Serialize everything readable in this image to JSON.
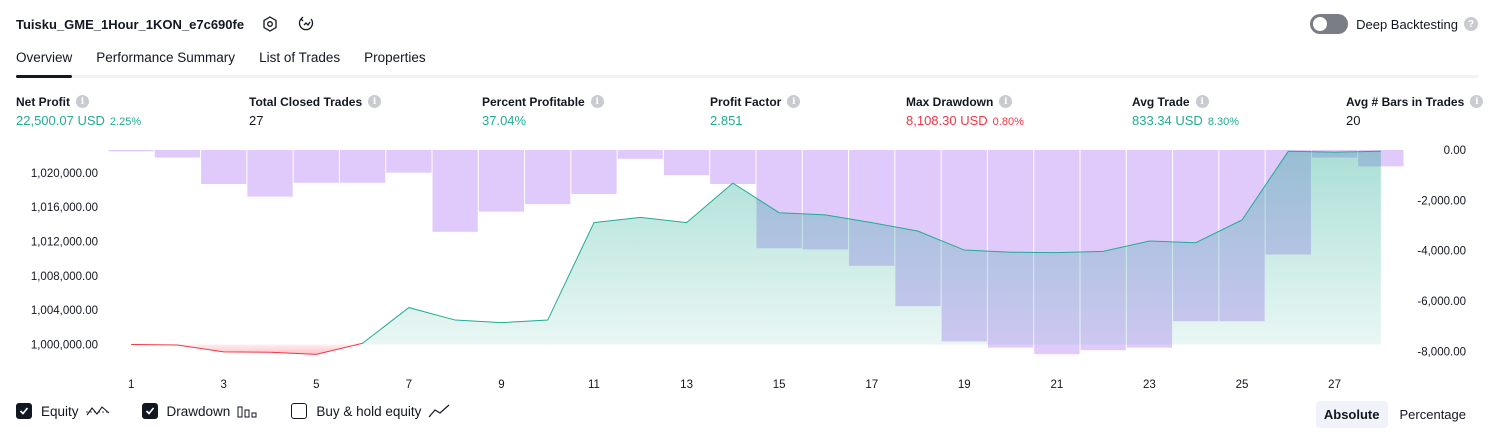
{
  "header": {
    "strategy_name": "Tuisku_GME_1Hour_1KON_e7c690fe",
    "deep_backtesting_label": "Deep Backtesting",
    "help_glyph": "?"
  },
  "tabs": [
    {
      "label": "Overview",
      "active": true
    },
    {
      "label": "Performance Summary",
      "active": false
    },
    {
      "label": "List of Trades",
      "active": false
    },
    {
      "label": "Properties",
      "active": false
    }
  ],
  "info_glyph": "i",
  "metrics": [
    {
      "label": "Net Profit",
      "value": "22,500.07 USD",
      "sub": "2.25%",
      "color": "green"
    },
    {
      "label": "Total Closed Trades",
      "value": "27",
      "sub": "",
      "color": "black"
    },
    {
      "label": "Percent Profitable",
      "value": "37.04%",
      "sub": "",
      "color": "green"
    },
    {
      "label": "Profit Factor",
      "value": "2.851",
      "sub": "",
      "color": "green"
    },
    {
      "label": "Max Drawdown",
      "value": "8,108.30 USD",
      "sub": "0.80%",
      "color": "red"
    },
    {
      "label": "Avg Trade",
      "value": "833.34 USD",
      "sub": "8.30%",
      "color": "green"
    },
    {
      "label": "Avg # Bars in Trades",
      "value": "20",
      "sub": "",
      "color": "black"
    }
  ],
  "legend": {
    "equity_label": "Equity",
    "drawdown_label": "Drawdown",
    "buy_hold_label": "Buy & hold equity",
    "equity_checked": true,
    "drawdown_checked": true,
    "buy_hold_checked": false
  },
  "mode": {
    "absolute_label": "Absolute",
    "percentage_label": "Percentage",
    "selected": "Absolute"
  },
  "chart_data": {
    "type": "area",
    "x": [
      1,
      2,
      3,
      4,
      5,
      6,
      7,
      8,
      9,
      10,
      11,
      12,
      13,
      14,
      15,
      16,
      17,
      18,
      19,
      20,
      21,
      22,
      23,
      24,
      25,
      26,
      27,
      28
    ],
    "x_tick_labels": [
      "1",
      "3",
      "5",
      "7",
      "9",
      "11",
      "13",
      "15",
      "17",
      "19",
      "21",
      "23",
      "25",
      "27"
    ],
    "series": [
      {
        "values": [
          1000000,
          999950,
          999150,
          999100,
          998850,
          1000150,
          1004300,
          1002850,
          1002550,
          1002850,
          1014200,
          1014800,
          1014200,
          1018800,
          1015350,
          1015100,
          1014200,
          1013200,
          1011000,
          1010750,
          1010700,
          1010850,
          1012050,
          1011850,
          1014500,
          1022500,
          1022400,
          1022500
        ]
      },
      {
        "values": [
          -50,
          -300,
          -1350,
          -1850,
          -1300,
          -1300,
          -900,
          -3250,
          -2450,
          -2150,
          -1750,
          -350,
          -1000,
          -1350,
          -3900,
          -3950,
          -4600,
          -6200,
          -7600,
          -7850,
          -8108.3,
          -7950,
          -7850,
          -6800,
          -6800,
          -4150,
          -300,
          -650
        ]
      }
    ],
    "left_axis": {
      "tick_labels": [
        "1,000,000.00",
        "1,004,000.00",
        "1,008,000.00",
        "1,012,000.00",
        "1,016,000.00",
        "1,020,000.00"
      ],
      "range": [
        998200,
        1022650
      ]
    },
    "right_axis": {
      "tick_labels": [
        "0.00",
        "-2,000.00",
        "-4,000.00",
        "-6,000.00",
        "-8,000.00"
      ],
      "range": [
        -8340,
        0
      ]
    },
    "colors": {
      "equity_line": "#22ab94",
      "equity_loss_line": "#f23645",
      "drawdown_bar": "#dcc3fb"
    }
  }
}
